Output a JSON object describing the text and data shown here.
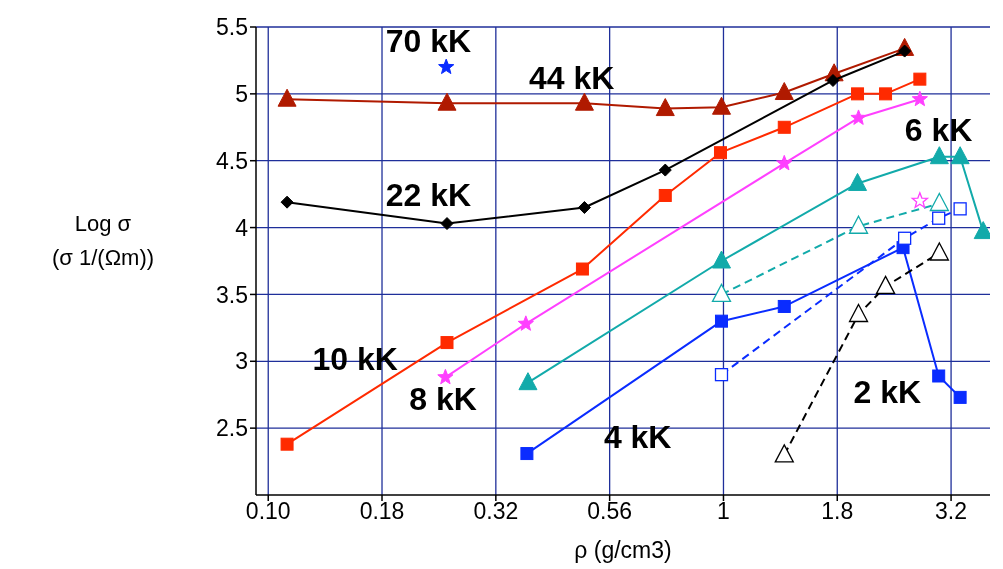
{
  "chart_data": {
    "type": "line",
    "xlabel": "ρ (g/cm3)",
    "ylabel": "Log σ\n(σ 1/(Ωm))",
    "log": "x",
    "grid": true,
    "xlim": [
      0.094,
      3.85
    ],
    "ylim": [
      2.0,
      5.5
    ],
    "xticks": [
      {
        "value": 0.1,
        "label": "0.10"
      },
      {
        "value": 0.1778,
        "label": "0.18"
      },
      {
        "value": 0.3162,
        "label": "0.32"
      },
      {
        "value": 0.5623,
        "label": "0.56"
      },
      1,
      {
        "value": 1.778,
        "label": "1.8"
      },
      {
        "value": 3.162,
        "label": "3.2"
      }
    ],
    "yticks": [
      2.5,
      3,
      3.5,
      4,
      4.5,
      5,
      5.5
    ],
    "series": [
      {
        "color": "#b01a00",
        "marker": "triangle",
        "line_style": "solid",
        "x": [
          0.11,
          0.247,
          0.495,
          0.745,
          0.99,
          1.36,
          1.75,
          2.5
        ],
        "values": [
          4.96,
          4.93,
          4.93,
          4.89,
          4.9,
          5.01,
          5.15,
          5.34
        ]
      },
      {
        "color": "#000000",
        "marker": "diamond",
        "line_style": "solid",
        "x": [
          0.11,
          0.247,
          0.495,
          0.745,
          1.74,
          2.5
        ],
        "values": [
          4.19,
          4.03,
          4.15,
          4.43,
          5.1,
          5.32
        ]
      },
      {
        "color": "#ff2a00",
        "marker": "square",
        "line_style": "solid",
        "x": [
          0.11,
          0.247,
          0.49,
          0.745,
          0.985,
          1.36,
          1.97,
          2.27,
          2.7
        ],
        "values": [
          2.38,
          3.14,
          3.69,
          4.24,
          4.56,
          4.75,
          5.0,
          5.0,
          5.11
        ]
      },
      {
        "color": "#ff40ff",
        "marker": "star",
        "line_style": "solid",
        "x": [
          0.245,
          0.368,
          1.36,
          1.98,
          2.7
        ],
        "values": [
          2.88,
          3.28,
          4.48,
          4.82,
          4.96
        ]
      },
      {
        "color": "#12aaaa",
        "marker": "triangle",
        "line_style": "solid",
        "x": [
          0.372,
          0.99,
          1.97,
          2.98,
          3.31,
          3.72
        ],
        "values": [
          2.84,
          3.75,
          4.33,
          4.53,
          4.53,
          3.97
        ]
      },
      {
        "color": "#0a2cff",
        "marker": "square",
        "line_style": "solid",
        "x": [
          0.37,
          0.99,
          1.36,
          2.48,
          2.97,
          3.31
        ],
        "values": [
          2.31,
          3.3,
          3.41,
          3.85,
          2.89,
          2.73
        ]
      },
      {
        "color": "#12aaaa",
        "marker": "triangle",
        "line_style": "dashed",
        "x": [
          0.99,
          1.98,
          2.98
        ],
        "values": [
          3.5,
          4.01,
          4.18
        ]
      },
      {
        "color": "#0a2cff",
        "marker": "square",
        "line_style": "dashed",
        "x": [
          0.99,
          2.5,
          2.97,
          3.31
        ],
        "values": [
          2.9,
          3.92,
          4.07,
          4.14
        ]
      },
      {
        "color": "#000000",
        "marker": "triangle",
        "line_style": "dashed",
        "x": [
          1.36,
          1.98,
          2.27,
          2.98
        ],
        "values": [
          2.3,
          3.35,
          3.56,
          3.81
        ]
      },
      {
        "type": "scatter",
        "color": "#ff40ff",
        "marker": "star",
        "line_style": "dashed",
        "x": [
          2.7
        ],
        "values": [
          4.2
        ]
      },
      {
        "type": "scatter",
        "color": "#0a2cff",
        "marker": "star",
        "line_style": "solid",
        "x": [
          0.246
        ],
        "values": [
          5.2
        ]
      }
    ],
    "annotations": [
      "70 kK",
      "44 kK",
      "22 kK",
      "10 kK",
      "8 kK",
      "6 kK",
      "4 kK",
      "2 kK"
    ]
  }
}
